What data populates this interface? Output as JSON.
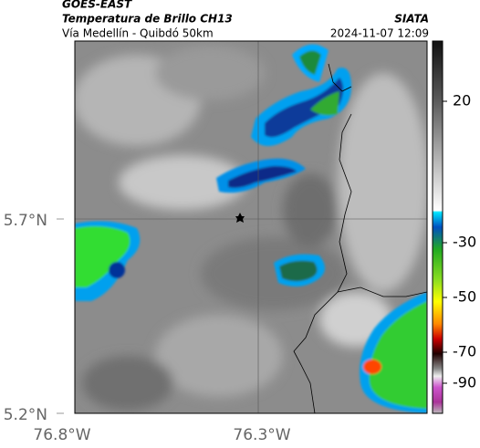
{
  "header": {
    "title": "GOES-EAST",
    "subtitle": "Temperatura de Brillo CH13",
    "location": "Vía Medellín - Quibdó 50km",
    "source": "SIATA",
    "timestamp": "2024-11-07 12:09"
  },
  "map": {
    "lat_labels": [
      "5.7°N",
      "5.2°N"
    ],
    "lon_labels": [
      "76.8°W",
      "76.3°W"
    ]
  },
  "colorbar": {
    "tick_labels": [
      "20",
      "-30",
      "-50",
      "-70",
      "-90"
    ]
  }
}
